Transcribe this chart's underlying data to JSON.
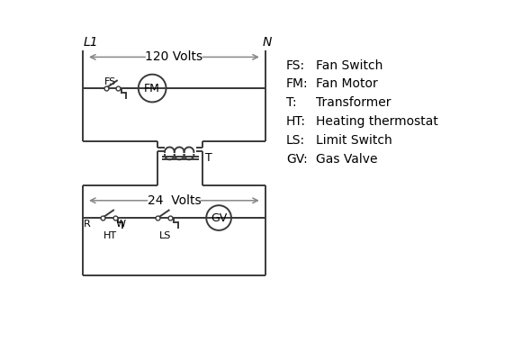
{
  "bg_color": "#ffffff",
  "line_color": "#3a3a3a",
  "arrow_color": "#888888",
  "text_color": "#000000",
  "legend_items": [
    [
      "FS:",
      "Fan Switch"
    ],
    [
      "FM:",
      "Fan Motor"
    ],
    [
      "T:",
      "Transformer"
    ],
    [
      "HT:",
      "Heating thermostat"
    ],
    [
      "LS:",
      "Limit Switch"
    ],
    [
      "GV:",
      "Gas Valve"
    ]
  ],
  "label_L1": "L1",
  "label_N": "N",
  "label_120V": "120 Volts",
  "label_24V": "24  Volts",
  "label_T": "T",
  "label_R": "R",
  "label_W": "W",
  "label_HT": "HT",
  "label_LS": "LS",
  "label_FS": "FS",
  "label_FM": "FM",
  "label_GV": "GV"
}
